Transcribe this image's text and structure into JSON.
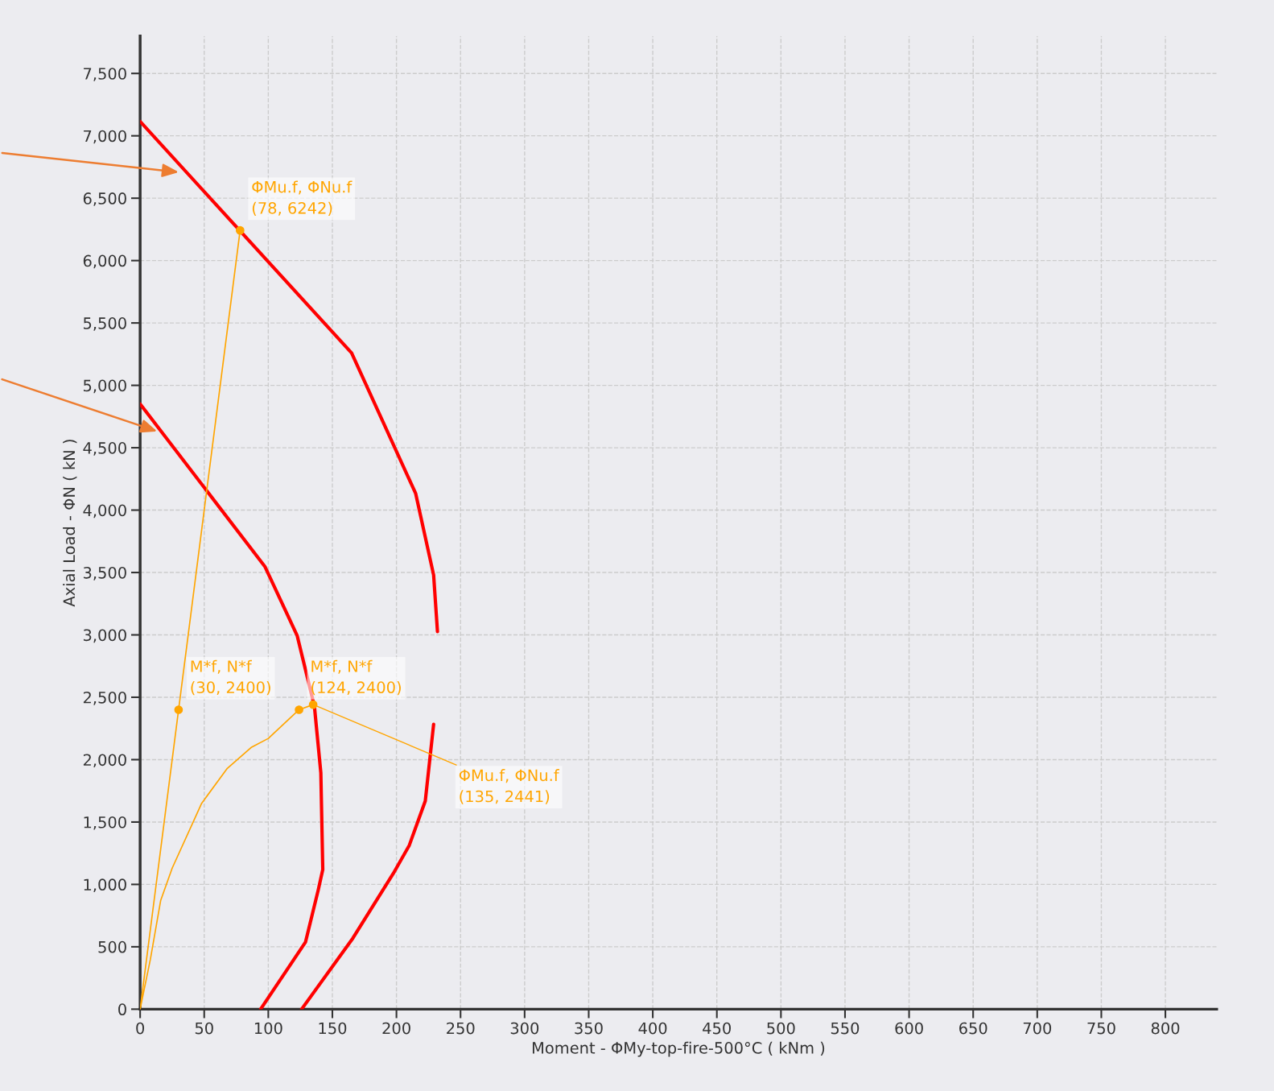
{
  "chart_data": {
    "type": "line",
    "xlabel": "Moment - ΦMy-top-fire-500°C ( kNm )",
    "ylabel": "Axial Load - ΦN ( kN )",
    "series": [
      {
        "color": "#ff0000",
        "x": [
          0,
          165,
          215,
          229,
          232
        ],
        "values": [
          7115,
          5259,
          4133,
          3480,
          3027
        ]
      },
      {
        "color": "#ff0000",
        "x": [
          229,
          222.5,
          210,
          197.5,
          166,
          126
        ],
        "values": [
          2283,
          1669,
          1313,
          1087,
          569,
          0
        ]
      },
      {
        "color": "#ff0000",
        "x": [
          0,
          97.5,
          122.5,
          136,
          141,
          142.5,
          139,
          129,
          94
        ],
        "values": [
          4851,
          3545,
          2995,
          2426,
          1895,
          1119,
          957,
          537,
          0
        ]
      },
      {
        "color": "#ffa500",
        "x": [
          0,
          30,
          78
        ],
        "values": [
          0,
          2400,
          6242
        ]
      },
      {
        "color": "#ffa500",
        "x": [
          0,
          8,
          16,
          25,
          48,
          68,
          87,
          100,
          124,
          135
        ],
        "values": [
          0,
          400,
          870,
          1130,
          1650,
          1930,
          2100,
          2170,
          2400,
          2441
        ]
      },
      {
        "type": "scatter",
        "color": "#ffa500",
        "marker": "circle",
        "x": [
          78,
          30,
          124,
          135
        ],
        "values": [
          6242,
          2400,
          2400,
          2441
        ]
      }
    ],
    "annotations": [
      {
        "text": "ΦMu.f, ΦNu.f\n(78, 6242)",
        "x": 78,
        "y": 6242
      },
      {
        "text": "M*f, N*f\n(30, 2400)",
        "x": 30,
        "y": 2400
      },
      {
        "text": "M*f, N*f\n(124, 2400)",
        "x": 124,
        "y": 2400
      },
      {
        "text": "ΦMu.f, ΦNu.f\n(135, 2441)",
        "x": 135,
        "y": 2441
      }
    ],
    "xlim": [
      0,
      840
    ],
    "ylim": [
      0,
      7800
    ],
    "xticks": [
      0,
      50,
      100,
      150,
      200,
      250,
      300,
      350,
      400,
      450,
      500,
      550,
      600,
      650,
      700,
      750,
      800
    ],
    "yticks": [
      0,
      {
        "value": 500,
        "label": "500"
      },
      {
        "value": 1000,
        "label": "1,000"
      },
      {
        "value": 1500,
        "label": "1,500"
      },
      {
        "value": 2000,
        "label": "2,000"
      },
      {
        "value": 2500,
        "label": "2,500"
      },
      {
        "value": 3000,
        "label": "3,000"
      },
      {
        "value": 3500,
        "label": "3,500"
      },
      {
        "value": 4000,
        "label": "4,000"
      },
      {
        "value": 4500,
        "label": "4,500"
      },
      {
        "value": 5000,
        "label": "5,000"
      },
      {
        "value": 5500,
        "label": "5,500"
      },
      {
        "value": 6000,
        "label": "6,000"
      },
      {
        "value": 6500,
        "label": "6,500"
      },
      {
        "value": 7000,
        "label": "7,000"
      },
      {
        "value": 7500,
        "label": "7,500"
      }
    ],
    "grid": true,
    "line_style": "solid",
    "marker": "none",
    "legend": false
  }
}
